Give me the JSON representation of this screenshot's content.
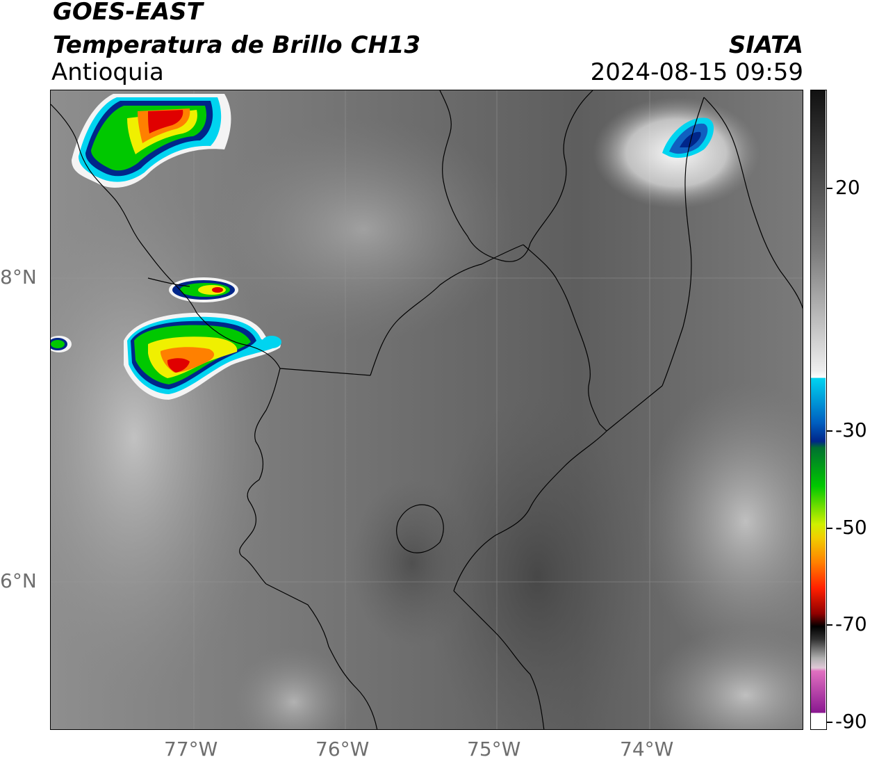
{
  "header": {
    "satellite": "GOES-EAST",
    "product": "Temperatura de Brillo CH13",
    "region": "Antioquia",
    "agency": "SIATA",
    "datetime": "2024-08-15 09:59"
  },
  "axes": {
    "lon_ticks": [
      "77°W",
      "76°W",
      "75°W",
      "74°W"
    ],
    "lat_ticks": [
      "8°N",
      "6°N"
    ]
  },
  "colorbar": {
    "ticks": [
      "20",
      "-30",
      "-50",
      "-70",
      "-90"
    ],
    "colors": {
      "gray_dark": "#111111",
      "gray_mid": "#8a8a8a",
      "white": "#ffffff",
      "cyan": "#00d4f0",
      "blue": "#00268a",
      "green": "#00c800",
      "yellow": "#f0f000",
      "orange": "#ff8000",
      "red": "#e00000",
      "black": "#000000",
      "pink": "#e070c0",
      "purple": "#8a1890"
    }
  }
}
